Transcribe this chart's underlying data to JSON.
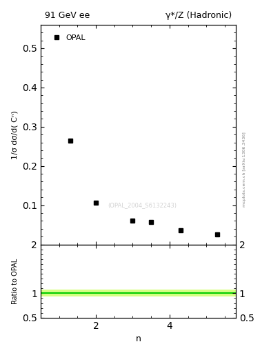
{
  "title_left": "91 GeV ee",
  "title_right": "γ*/Z (Hadronic)",
  "ylabel_main": "1/σ dσ/d( Cⁿ)",
  "ylabel_ratio": "Ratio to OPAL",
  "xlabel": "n",
  "watermark": "(OPAL_2004_S6132243)",
  "right_label": "mcplots.cern.ch [arXiv:1306.3436]",
  "data_x": [
    1.3,
    2.0,
    3.0,
    3.5,
    4.3,
    5.3
  ],
  "data_y": [
    0.265,
    0.107,
    0.06,
    0.057,
    0.036,
    0.025
  ],
  "ylim_main": [
    0.0,
    0.56
  ],
  "ylim_ratio": [
    0.5,
    2.0
  ],
  "xlim": [
    0.5,
    5.8
  ],
  "yticks_main": [
    0.1,
    0.2,
    0.3,
    0.4,
    0.5
  ],
  "yticks_ratio": [
    0.5,
    1.0,
    2.0
  ],
  "xticks": [
    2,
    4
  ],
  "ratio_line_color": "#00cc00",
  "ratio_band_color": "#ccff66",
  "marker_color": "black",
  "marker_size": 4
}
